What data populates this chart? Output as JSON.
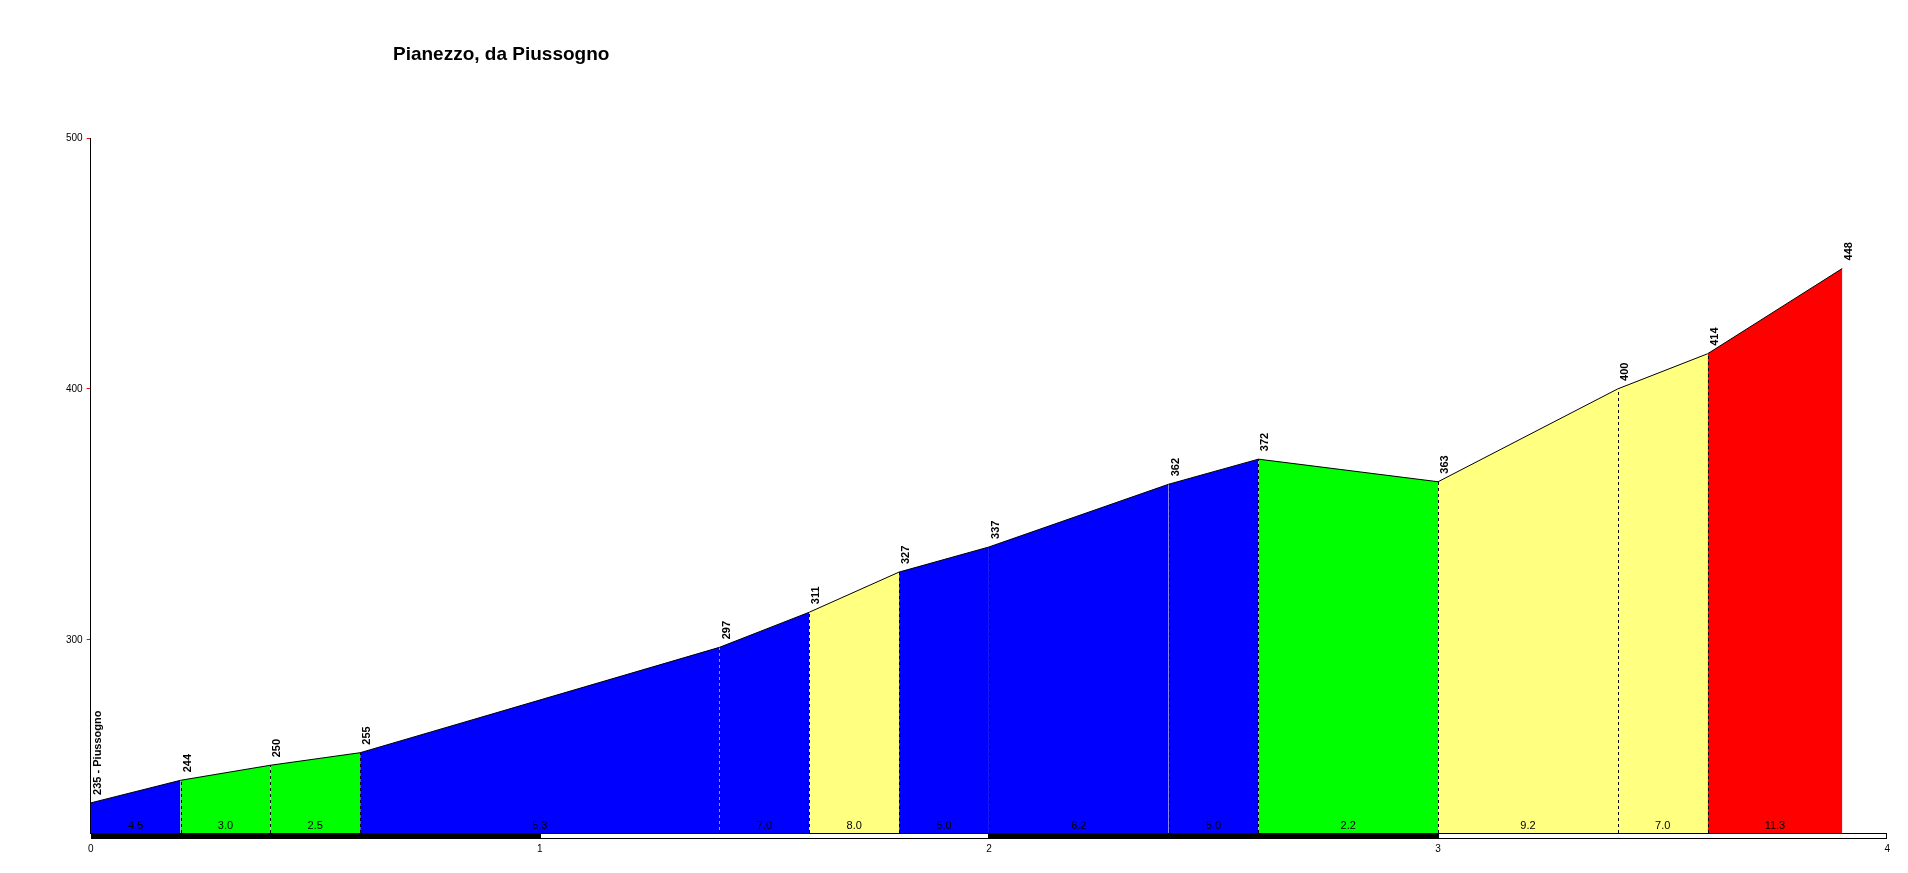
{
  "chart_data": {
    "type": "area",
    "title": "Pianezzo, da Piussogno",
    "xlim": [
      0,
      4
    ],
    "xticks": [
      0,
      1,
      2,
      3,
      4
    ],
    "ylim": [
      223,
      500
    ],
    "yticks": [
      300,
      400,
      500
    ],
    "grid": false,
    "legend": false,
    "series": [
      {
        "color": "#0000ff",
        "x": [
          0,
          0.2
        ],
        "values": [
          235,
          244
        ],
        "value_labels": [
          "235 - Piussogno",
          null
        ]
      },
      {
        "color": "#00ff00",
        "x": [
          0.2,
          0.4
        ],
        "values": [
          244,
          250
        ],
        "value_labels": [
          "244",
          null
        ]
      },
      {
        "color": "#00ff00",
        "x": [
          0.4,
          0.6
        ],
        "values": [
          250,
          255
        ],
        "value_labels": [
          "250",
          null
        ]
      },
      {
        "color": "#0000ff",
        "x": [
          0.6,
          1.4
        ],
        "values": [
          255,
          297
        ],
        "value_labels": [
          "255",
          null
        ]
      },
      {
        "color": "#0000ff",
        "x": [
          1.4,
          1.6
        ],
        "values": [
          297,
          311
        ],
        "value_labels": [
          "297",
          null
        ]
      },
      {
        "color": "#ffff80",
        "x": [
          1.6,
          1.8
        ],
        "values": [
          311,
          327
        ],
        "value_labels": [
          "311",
          null
        ]
      },
      {
        "color": "#0000ff",
        "x": [
          1.8,
          2.0
        ],
        "values": [
          327,
          337
        ],
        "value_labels": [
          "327",
          null
        ]
      },
      {
        "color": "#0000ff",
        "x": [
          2.0,
          2.4
        ],
        "values": [
          337,
          362
        ],
        "value_labels": [
          "337",
          null
        ]
      },
      {
        "color": "#0000ff",
        "x": [
          2.4,
          2.6
        ],
        "values": [
          362,
          372
        ],
        "value_labels": [
          "362",
          null
        ]
      },
      {
        "color": "#00ff00",
        "x": [
          2.6,
          3.0
        ],
        "values": [
          372,
          363
        ],
        "value_labels": [
          "372",
          null
        ]
      },
      {
        "color": "#ffff80",
        "x": [
          3.0,
          3.4
        ],
        "values": [
          363,
          400
        ],
        "value_labels": [
          "363",
          null
        ]
      },
      {
        "color": "#ffff80",
        "x": [
          3.4,
          3.6
        ],
        "values": [
          400,
          414
        ],
        "value_labels": [
          "400",
          null
        ]
      },
      {
        "color": "#ff0000",
        "x": [
          3.6,
          3.9
        ],
        "values": [
          414,
          448
        ],
        "value_labels": [
          "414",
          "448"
        ]
      }
    ],
    "annotations": [
      "4.5",
      "3.0",
      "2.5",
      "5.3",
      "7.0",
      "8.0",
      "5.0",
      "6.2",
      "5.0",
      "2.2",
      "9.2",
      "7.0",
      "11.3"
    ]
  }
}
